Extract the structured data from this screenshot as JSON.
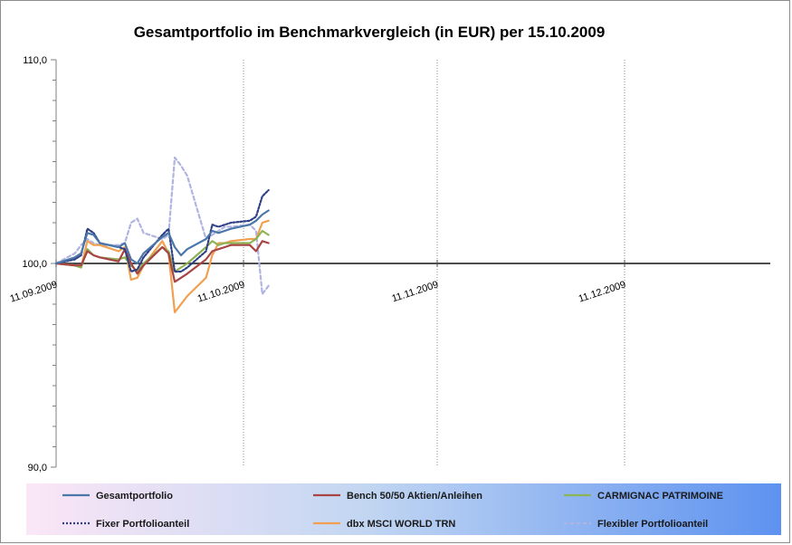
{
  "chart_data": {
    "type": "line",
    "title": "Gesamtportfolio  im Benchmarkvergleich (in EUR) per 15.10.2009",
    "xlabel": "",
    "ylabel": "",
    "ylim": [
      90,
      110
    ],
    "ytick_labels": [
      "110,0",
      "100,0",
      "90,0"
    ],
    "xlim": [
      "2009-09-11",
      "2010-01-11"
    ],
    "xtick_labels": [
      "11.09.2009",
      "11.10.2009",
      "11.11.2009",
      "11.12.2009"
    ],
    "grid": "dotted vertical lines at month marks",
    "legend_placement": "bottom",
    "x": [
      "2009-09-11",
      "2009-09-14",
      "2009-09-15",
      "2009-09-16",
      "2009-09-17",
      "2009-09-18",
      "2009-09-21",
      "2009-09-22",
      "2009-09-23",
      "2009-09-24",
      "2009-09-25",
      "2009-09-28",
      "2009-09-29",
      "2009-09-30",
      "2009-10-01",
      "2009-10-02",
      "2009-10-05",
      "2009-10-06",
      "2009-10-07",
      "2009-10-08",
      "2009-10-09",
      "2009-10-12",
      "2009-10-13",
      "2009-10-14",
      "2009-10-15"
    ],
    "series": [
      {
        "name": "Gesamtportfolio",
        "color": "#4a76a8",
        "dash": "solid",
        "values": [
          100.0,
          100.3,
          100.5,
          101.5,
          101.4,
          101.0,
          100.8,
          101.0,
          100.2,
          100.0,
          100.5,
          101.3,
          101.5,
          100.8,
          100.4,
          100.7,
          101.2,
          101.6,
          101.5,
          101.6,
          101.7,
          101.9,
          102.1,
          102.4,
          102.6
        ]
      },
      {
        "name": "Bench 50/50 Aktien/Anleihen",
        "color": "#a84444",
        "dash": "solid",
        "values": [
          100.0,
          99.9,
          99.9,
          100.6,
          100.4,
          100.3,
          100.1,
          100.7,
          100.0,
          99.5,
          99.9,
          100.8,
          100.5,
          99.1,
          99.3,
          99.5,
          100.2,
          100.6,
          100.7,
          100.8,
          100.9,
          100.9,
          100.6,
          101.1,
          101.0
        ]
      },
      {
        "name": "CARMIGNAC PATRIMOINE",
        "color": "#8cb355",
        "dash": "solid",
        "values": [
          100.0,
          99.9,
          99.8,
          100.7,
          100.4,
          100.3,
          100.2,
          100.3,
          99.9,
          99.6,
          100.0,
          100.8,
          100.6,
          99.6,
          99.8,
          100.0,
          100.8,
          101.1,
          100.9,
          101.0,
          101.0,
          101.0,
          101.2,
          101.6,
          101.4
        ]
      },
      {
        "name": "Fixer Portfolioanteil",
        "color": "#2e3f85",
        "dash": "dotted",
        "values": [
          100.0,
          100.2,
          100.4,
          101.7,
          101.5,
          101.0,
          100.8,
          100.7,
          99.6,
          99.7,
          100.3,
          101.4,
          101.7,
          99.6,
          99.6,
          99.8,
          100.6,
          101.9,
          101.8,
          101.9,
          102.0,
          102.1,
          102.3,
          103.3,
          103.6
        ]
      },
      {
        "name": "dbx MSCI WORLD TRN",
        "color": "#f0a050",
        "dash": "solid",
        "values": [
          100.0,
          99.9,
          99.8,
          101.1,
          100.9,
          100.9,
          100.6,
          100.8,
          99.2,
          99.3,
          99.9,
          101.1,
          100.5,
          97.6,
          98.0,
          98.4,
          99.3,
          100.4,
          101.0,
          101.0,
          101.1,
          101.2,
          101.2,
          102.0,
          102.1
        ]
      },
      {
        "name": "Flexibler Portfolioanteil",
        "color": "#b0b4e0",
        "dash": "dashed",
        "values": [
          100.0,
          100.5,
          100.9,
          101.2,
          101.0,
          100.9,
          100.9,
          101.0,
          102.0,
          102.2,
          101.5,
          101.2,
          101.4,
          105.2,
          104.8,
          104.3,
          101.2,
          101.4,
          101.6,
          101.8,
          101.8,
          101.9,
          101.6,
          98.5,
          98.9
        ]
      }
    ]
  }
}
